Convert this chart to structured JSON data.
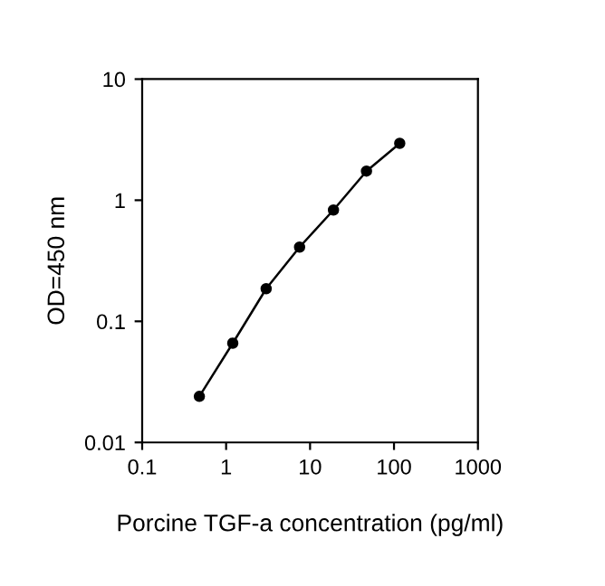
{
  "chart_data": {
    "type": "line",
    "xlabel": "Porcine TGF-a concentration (pg/ml)",
    "ylabel": "OD=450 nm",
    "x": [
      0.48,
      1.2,
      3,
      7.5,
      19,
      47,
      117
    ],
    "series": [
      {
        "color": "#000000",
        "values": [
          0.024,
          0.066,
          0.186,
          0.41,
          0.83,
          1.74,
          2.95
        ]
      }
    ],
    "log": "xy",
    "xlim": [
      0.1,
      1000
    ],
    "ylim": [
      0.01,
      10
    ],
    "xticks": [
      0.1,
      1,
      10,
      100,
      1000
    ],
    "yticks": [
      0.01,
      0.1,
      1,
      10
    ],
    "marker": "circle",
    "line_style": "solid",
    "grid": false,
    "legend": false
  }
}
